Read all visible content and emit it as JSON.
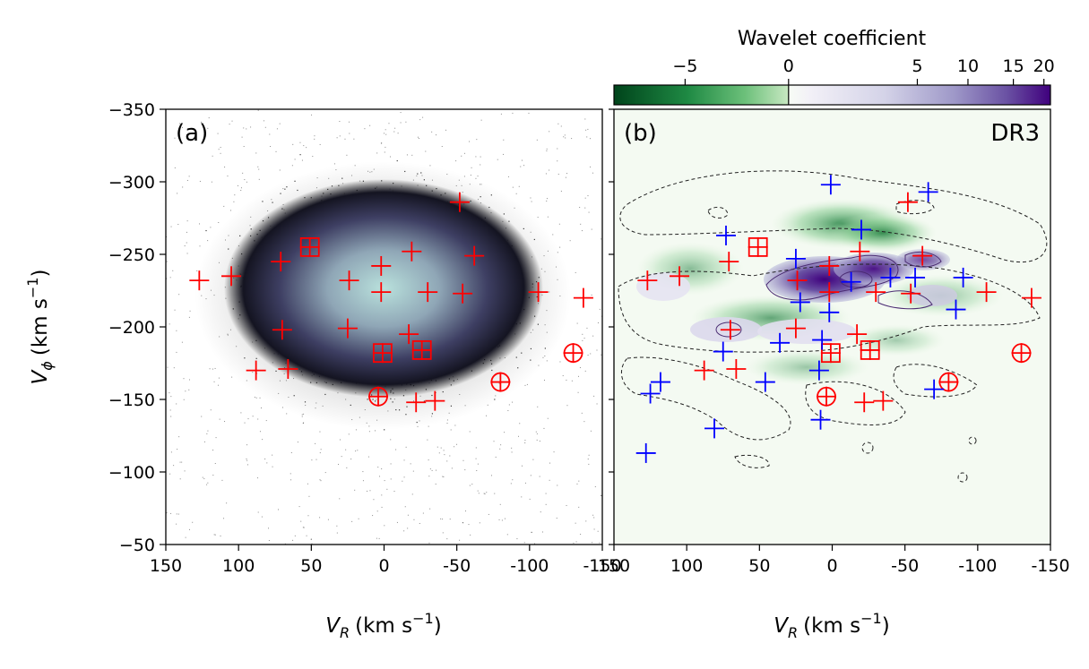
{
  "colorbar": {
    "label": "Wavelet coefficient",
    "ticks": [
      "−5",
      "0",
      "5",
      "10",
      "15",
      "20"
    ],
    "scale": "symlog",
    "low_color": "#00441b",
    "mid_color": "#f7fcf5",
    "high_color": "#3f007d"
  },
  "axes": {
    "ylabel_main": "V",
    "ylabel_sub": "ϕ",
    "ylabel_units": "(km s",
    "ylabel_exp": "−1",
    "ylabel_close": ")",
    "xlabel_main": "V",
    "xlabel_sub": "R",
    "xlabel_units": "(km s",
    "xlabel_exp": "−1",
    "xlabel_close": ")",
    "xlim": [
      150,
      -150
    ],
    "ylim": [
      -50,
      -350
    ],
    "xticks": [
      150,
      100,
      50,
      0,
      -50,
      -100,
      -150
    ],
    "xticklabels_a": [
      "150",
      "100",
      "50",
      "0",
      "-50",
      "-100",
      "-150"
    ],
    "xticklabels_b": [
      "150",
      "100",
      "50",
      "0",
      "-50",
      "-100",
      "-150"
    ],
    "yticks": [
      -350,
      -300,
      -250,
      -200,
      -150,
      -100,
      -50
    ],
    "yticklabels": [
      "−350",
      "−300",
      "−250",
      "−200",
      "−150",
      "−100",
      "−50"
    ]
  },
  "panels": {
    "a": {
      "label": "(a)",
      "background": "#ffffff",
      "scatter_color": "#000000",
      "density_light": "#b9e1dc"
    },
    "b": {
      "label": "(b)",
      "tag": "DR3",
      "background": "#f4faf2"
    }
  },
  "chart_data": {
    "type": "scatter",
    "xlim": [
      150,
      -150
    ],
    "ylim": [
      -50,
      -350
    ],
    "grid": false,
    "series": [
      {
        "marker": "plus",
        "color": "#ff0000",
        "points": [
          [
            127,
            -232
          ],
          [
            105,
            -235
          ],
          [
            71,
            -245
          ],
          [
            70,
            -198
          ],
          [
            88,
            -170
          ],
          [
            66,
            -171
          ],
          [
            24,
            -232
          ],
          [
            25,
            -199
          ],
          [
            2,
            -242
          ],
          [
            2,
            -224
          ],
          [
            -19,
            -252
          ],
          [
            -30,
            -224
          ],
          [
            -52,
            -286
          ],
          [
            -62,
            -249
          ],
          [
            -54,
            -223
          ],
          [
            -17,
            -195
          ],
          [
            -106,
            -224
          ],
          [
            -137,
            -220
          ],
          [
            -35,
            -149
          ],
          [
            -22,
            -148
          ]
        ]
      },
      {
        "marker": "square-plus",
        "color": "#ff0000",
        "points": [
          [
            51,
            -255
          ],
          [
            1,
            -182
          ],
          [
            -26,
            -184
          ]
        ]
      },
      {
        "marker": "circle-plus",
        "color": "#ff0000",
        "points": [
          [
            4,
            -152
          ],
          [
            -80,
            -162
          ],
          [
            -130,
            -182
          ]
        ]
      },
      {
        "marker": "plus",
        "color": "#0000ff",
        "points": [
          [
            1,
            -298
          ],
          [
            -66,
            -293
          ],
          [
            -20,
            -267
          ],
          [
            73,
            -263
          ],
          [
            25,
            -247
          ],
          [
            -40,
            -234
          ],
          [
            -57,
            -234
          ],
          [
            -90,
            -234
          ],
          [
            -13,
            -231
          ],
          [
            22,
            -217
          ],
          [
            2,
            -210
          ],
          [
            -85,
            -212
          ],
          [
            75,
            -183
          ],
          [
            36,
            -189
          ],
          [
            7,
            -191
          ],
          [
            9,
            -170
          ],
          [
            -70,
            -157
          ],
          [
            125,
            -154
          ],
          [
            118,
            -162
          ],
          [
            46,
            -162
          ],
          [
            8,
            -136
          ],
          [
            81,
            -130
          ],
          [
            128,
            -113
          ]
        ]
      }
    ]
  }
}
